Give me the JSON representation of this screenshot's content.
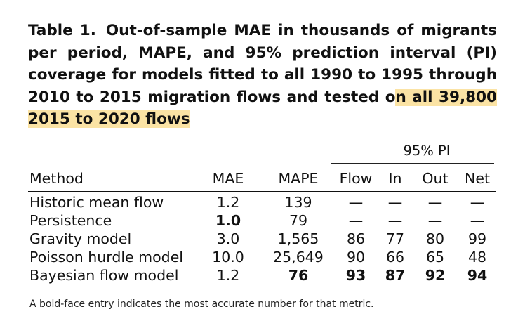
{
  "caption": {
    "label": "Table 1.",
    "text_main": "Out-of-sample MAE in thousands of migrants per period, MAPE, and 95% prediction interval (PI) coverage for models fitted to all 1990 to 1995 through 2010 to 2015 migration flows and tested o",
    "text_highlight": "n all 39,800 2015 to 2020 flows"
  },
  "table": {
    "group_header": "95% PI",
    "columns": {
      "method": "Method",
      "mae": "MAE",
      "mape": "MAPE",
      "flow": "Flow",
      "in": "In",
      "out": "Out",
      "net": "Net"
    },
    "rows": [
      {
        "method": "Historic mean flow",
        "mae": "1.2",
        "mape": "139",
        "flow": "—",
        "in": "—",
        "out": "—",
        "net": "—"
      },
      {
        "method": "Persistence",
        "mae": "1.0",
        "mape": "79",
        "flow": "—",
        "in": "—",
        "out": "—",
        "net": "—"
      },
      {
        "method": "Gravity model",
        "mae": "3.0",
        "mape": "1,565",
        "flow": "86",
        "in": "77",
        "out": "80",
        "net": "99"
      },
      {
        "method": "Poisson hurdle model",
        "mae": "10.0",
        "mape": "25,649",
        "flow": "90",
        "in": "66",
        "out": "65",
        "net": "48"
      },
      {
        "method": "Bayesian flow model",
        "mae": "1.2",
        "mape": "76",
        "flow": "93",
        "in": "87",
        "out": "92",
        "net": "94"
      }
    ]
  },
  "footnote": "A bold-face entry indicates the most accurate number for that metric.",
  "colors": {
    "highlight": "#fbe3a4",
    "text": "#111111"
  }
}
